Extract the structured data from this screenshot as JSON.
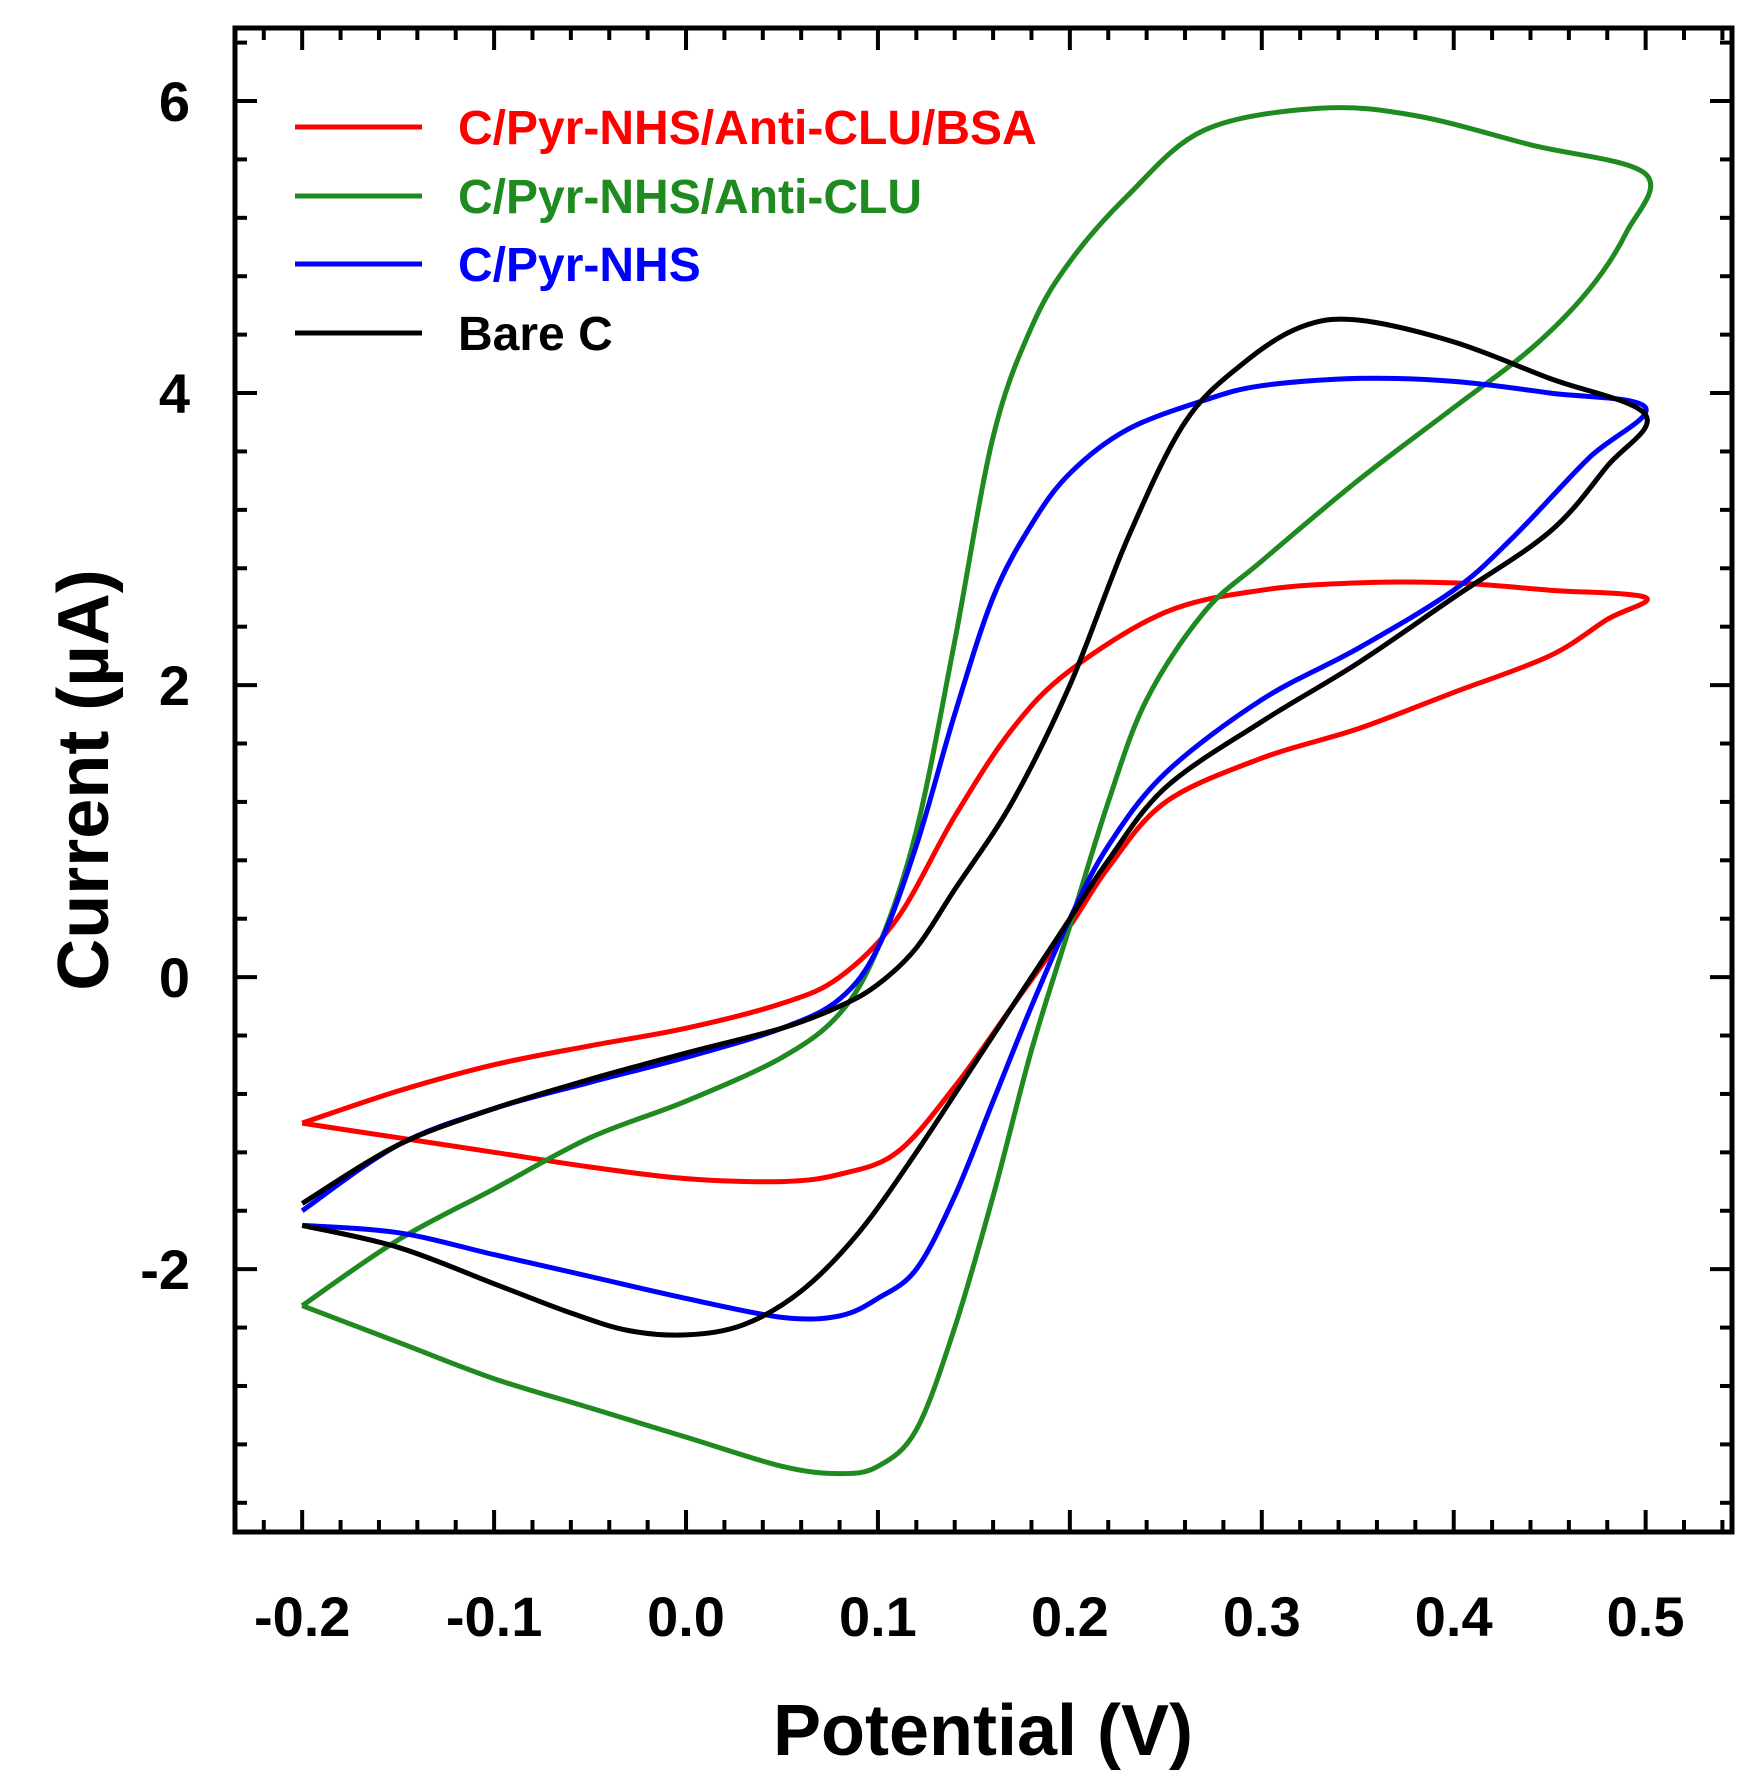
{
  "chart_data": {
    "type": "line",
    "title": "",
    "xlabel": "Potential (V)",
    "ylabel": "Current (µA)",
    "xlim": [
      -0.235,
      0.545
    ],
    "ylim": [
      -3.8,
      6.5
    ],
    "xticks": [
      -0.2,
      -0.1,
      0.0,
      0.1,
      0.2,
      0.3,
      0.4,
      0.5
    ],
    "xtick_labels": [
      "-0.2",
      "-0.1",
      "0.0",
      "0.1",
      "0.2",
      "0.3",
      "0.4",
      "0.5"
    ],
    "yticks": [
      -2,
      0,
      2,
      4,
      6
    ],
    "ytick_labels": [
      "-2",
      "0",
      "2",
      "4",
      "6"
    ],
    "x_minor_step": 0.02,
    "y_minor_step": 0.4,
    "grid": false,
    "legend_position": "top-left",
    "series": [
      {
        "name": "C/Pyr-NHS/Anti-CLU/BSA",
        "color": "#ff0000",
        "points": [
          [
            -0.2,
            -1.0
          ],
          [
            -0.15,
            -0.78
          ],
          [
            -0.1,
            -0.6
          ],
          [
            -0.05,
            -0.47
          ],
          [
            0.0,
            -0.35
          ],
          [
            0.05,
            -0.18
          ],
          [
            0.08,
            0.0
          ],
          [
            0.11,
            0.4
          ],
          [
            0.14,
            1.1
          ],
          [
            0.17,
            1.7
          ],
          [
            0.2,
            2.1
          ],
          [
            0.25,
            2.5
          ],
          [
            0.3,
            2.65
          ],
          [
            0.35,
            2.7
          ],
          [
            0.4,
            2.7
          ],
          [
            0.45,
            2.65
          ],
          [
            0.5,
            2.6
          ],
          [
            0.48,
            2.45
          ],
          [
            0.45,
            2.2
          ],
          [
            0.4,
            1.95
          ],
          [
            0.35,
            1.7
          ],
          [
            0.3,
            1.5
          ],
          [
            0.25,
            1.2
          ],
          [
            0.22,
            0.75
          ],
          [
            0.2,
            0.35
          ],
          [
            0.17,
            -0.2
          ],
          [
            0.14,
            -0.75
          ],
          [
            0.11,
            -1.2
          ],
          [
            0.08,
            -1.35
          ],
          [
            0.05,
            -1.4
          ],
          [
            0.0,
            -1.38
          ],
          [
            -0.05,
            -1.3
          ],
          [
            -0.1,
            -1.2
          ],
          [
            -0.15,
            -1.1
          ],
          [
            -0.2,
            -1.0
          ]
        ]
      },
      {
        "name": "C/Pyr-NHS/Anti-CLU",
        "color": "#1f8a1f",
        "points": [
          [
            -0.2,
            -2.25
          ],
          [
            -0.15,
            -1.8
          ],
          [
            -0.1,
            -1.45
          ],
          [
            -0.05,
            -1.1
          ],
          [
            0.0,
            -0.85
          ],
          [
            0.05,
            -0.55
          ],
          [
            0.08,
            -0.25
          ],
          [
            0.1,
            0.2
          ],
          [
            0.12,
            1.0
          ],
          [
            0.14,
            2.3
          ],
          [
            0.16,
            3.7
          ],
          [
            0.18,
            4.45
          ],
          [
            0.2,
            4.9
          ],
          [
            0.23,
            5.35
          ],
          [
            0.27,
            5.8
          ],
          [
            0.33,
            5.95
          ],
          [
            0.38,
            5.9
          ],
          [
            0.44,
            5.7
          ],
          [
            0.5,
            5.5
          ],
          [
            0.49,
            5.1
          ],
          [
            0.47,
            4.7
          ],
          [
            0.44,
            4.3
          ],
          [
            0.4,
            3.9
          ],
          [
            0.35,
            3.4
          ],
          [
            0.3,
            2.85
          ],
          [
            0.27,
            2.5
          ],
          [
            0.24,
            1.9
          ],
          [
            0.22,
            1.2
          ],
          [
            0.2,
            0.35
          ],
          [
            0.18,
            -0.5
          ],
          [
            0.16,
            -1.5
          ],
          [
            0.14,
            -2.4
          ],
          [
            0.12,
            -3.1
          ],
          [
            0.1,
            -3.35
          ],
          [
            0.08,
            -3.4
          ],
          [
            0.05,
            -3.35
          ],
          [
            0.0,
            -3.15
          ],
          [
            -0.05,
            -2.95
          ],
          [
            -0.1,
            -2.75
          ],
          [
            -0.15,
            -2.5
          ],
          [
            -0.2,
            -2.25
          ]
        ]
      },
      {
        "name": "C/Pyr-NHS",
        "color": "#0000ff",
        "points": [
          [
            -0.2,
            -1.6
          ],
          [
            -0.15,
            -1.15
          ],
          [
            -0.1,
            -0.9
          ],
          [
            -0.05,
            -0.72
          ],
          [
            0.0,
            -0.55
          ],
          [
            0.05,
            -0.35
          ],
          [
            0.08,
            -0.15
          ],
          [
            0.1,
            0.2
          ],
          [
            0.12,
            0.9
          ],
          [
            0.14,
            1.8
          ],
          [
            0.16,
            2.6
          ],
          [
            0.18,
            3.1
          ],
          [
            0.2,
            3.45
          ],
          [
            0.23,
            3.75
          ],
          [
            0.27,
            3.95
          ],
          [
            0.3,
            4.05
          ],
          [
            0.35,
            4.1
          ],
          [
            0.4,
            4.08
          ],
          [
            0.45,
            4.0
          ],
          [
            0.5,
            3.9
          ],
          [
            0.47,
            3.55
          ],
          [
            0.43,
            3.0
          ],
          [
            0.4,
            2.65
          ],
          [
            0.35,
            2.25
          ],
          [
            0.3,
            1.9
          ],
          [
            0.25,
            1.4
          ],
          [
            0.22,
            0.9
          ],
          [
            0.2,
            0.4
          ],
          [
            0.18,
            -0.2
          ],
          [
            0.16,
            -0.85
          ],
          [
            0.14,
            -1.5
          ],
          [
            0.12,
            -2.0
          ],
          [
            0.1,
            -2.2
          ],
          [
            0.08,
            -2.32
          ],
          [
            0.05,
            -2.33
          ],
          [
            0.0,
            -2.2
          ],
          [
            -0.05,
            -2.05
          ],
          [
            -0.1,
            -1.9
          ],
          [
            -0.15,
            -1.75
          ],
          [
            -0.2,
            -1.7
          ]
        ]
      },
      {
        "name": "Bare C",
        "color": "#000000",
        "points": [
          [
            -0.2,
            -1.55
          ],
          [
            -0.15,
            -1.15
          ],
          [
            -0.1,
            -0.9
          ],
          [
            -0.05,
            -0.7
          ],
          [
            0.0,
            -0.52
          ],
          [
            0.05,
            -0.35
          ],
          [
            0.08,
            -0.2
          ],
          [
            0.1,
            -0.05
          ],
          [
            0.12,
            0.2
          ],
          [
            0.14,
            0.6
          ],
          [
            0.17,
            1.2
          ],
          [
            0.2,
            2.0
          ],
          [
            0.23,
            3.0
          ],
          [
            0.26,
            3.8
          ],
          [
            0.29,
            4.2
          ],
          [
            0.32,
            4.45
          ],
          [
            0.35,
            4.5
          ],
          [
            0.4,
            4.35
          ],
          [
            0.45,
            4.1
          ],
          [
            0.5,
            3.85
          ],
          [
            0.48,
            3.5
          ],
          [
            0.45,
            3.05
          ],
          [
            0.4,
            2.6
          ],
          [
            0.35,
            2.15
          ],
          [
            0.3,
            1.75
          ],
          [
            0.25,
            1.3
          ],
          [
            0.22,
            0.8
          ],
          [
            0.2,
            0.4
          ],
          [
            0.18,
            0.0
          ],
          [
            0.15,
            -0.6
          ],
          [
            0.12,
            -1.2
          ],
          [
            0.09,
            -1.75
          ],
          [
            0.06,
            -2.15
          ],
          [
            0.03,
            -2.38
          ],
          [
            0.0,
            -2.45
          ],
          [
            -0.03,
            -2.42
          ],
          [
            -0.06,
            -2.3
          ],
          [
            -0.1,
            -2.1
          ],
          [
            -0.15,
            -1.85
          ],
          [
            -0.2,
            -1.7
          ]
        ]
      }
    ]
  }
}
